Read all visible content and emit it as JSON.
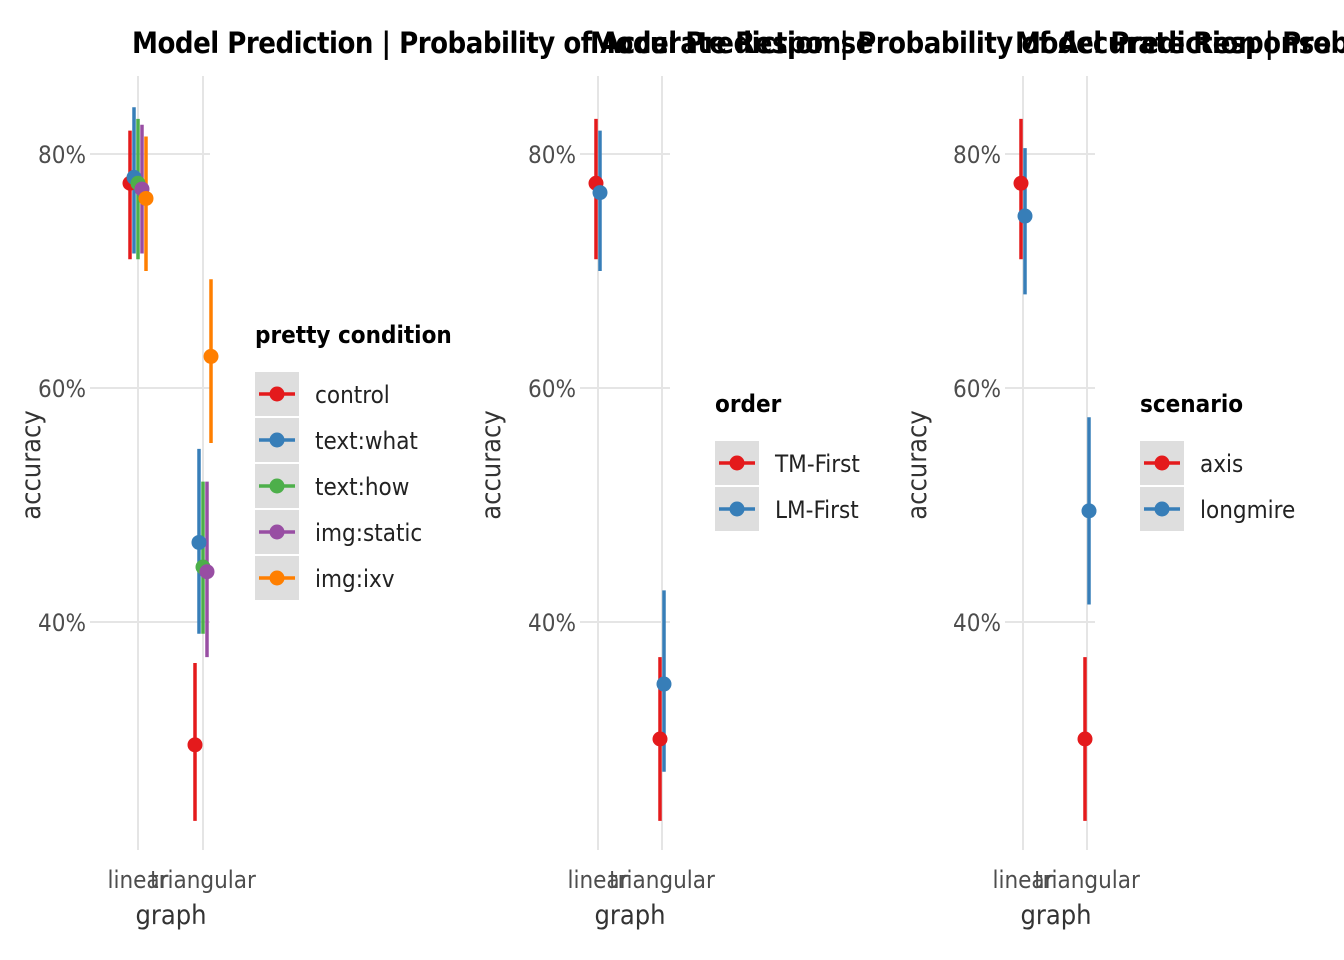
{
  "chart_data": [
    {
      "type": "scatter",
      "subtype": "pointrange",
      "title": "Model Prediction | Probability of Accurate Response",
      "xlabel": "graph",
      "ylabel": "accuracy",
      "categories": [
        "linear",
        "triangular"
      ],
      "y_ticks": [
        "40%",
        "60%",
        "80%"
      ],
      "ylim": [
        0.22,
        0.87
      ],
      "grid": true,
      "legend": {
        "title": "pretty condition",
        "position": "right"
      },
      "series": [
        {
          "name": "control",
          "color": "#e41a1c",
          "values": [
            0.775,
            0.295
          ],
          "lower": [
            0.71,
            0.23
          ],
          "upper": [
            0.82,
            0.365
          ]
        },
        {
          "name": "text:what",
          "color": "#377eb8",
          "values": [
            0.78,
            0.468
          ],
          "lower": [
            0.715,
            0.39
          ],
          "upper": [
            0.84,
            0.548
          ]
        },
        {
          "name": "text:how",
          "color": "#4daf4a",
          "values": [
            0.775,
            0.447
          ],
          "lower": [
            0.71,
            0.39
          ],
          "upper": [
            0.83,
            0.52
          ]
        },
        {
          "name": "img:static",
          "color": "#984ea3",
          "values": [
            0.77,
            0.443
          ],
          "lower": [
            0.715,
            0.37
          ],
          "upper": [
            0.825,
            0.52
          ]
        },
        {
          "name": "img:ixv",
          "color": "#ff7f00",
          "values": [
            0.762,
            0.627
          ],
          "lower": [
            0.7,
            0.553
          ],
          "upper": [
            0.815,
            0.693
          ]
        }
      ]
    },
    {
      "type": "scatter",
      "subtype": "pointrange",
      "title": "Model Prediction | Probability of Accurate Response",
      "xlabel": "graph",
      "ylabel": "accuracy",
      "categories": [
        "linear",
        "triangular"
      ],
      "y_ticks": [
        "40%",
        "60%",
        "80%"
      ],
      "ylim": [
        0.22,
        0.87
      ],
      "grid": true,
      "legend": {
        "title": "order",
        "position": "right"
      },
      "series": [
        {
          "name": "TM-First",
          "color": "#e41a1c",
          "values": [
            0.775,
            0.3
          ],
          "lower": [
            0.71,
            0.23
          ],
          "upper": [
            0.83,
            0.37
          ]
        },
        {
          "name": "LM-First",
          "color": "#377eb8",
          "values": [
            0.767,
            0.347
          ],
          "lower": [
            0.7,
            0.272
          ],
          "upper": [
            0.82,
            0.427
          ]
        }
      ]
    },
    {
      "type": "scatter",
      "subtype": "pointrange",
      "title": "Model Prediction | Probability of Accurate Response",
      "xlabel": "graph",
      "ylabel": "accuracy",
      "categories": [
        "linear",
        "triangular"
      ],
      "y_ticks": [
        "40%",
        "60%",
        "80%"
      ],
      "ylim": [
        0.22,
        0.87
      ],
      "grid": true,
      "legend": {
        "title": "scenario",
        "position": "right"
      },
      "series": [
        {
          "name": "axis",
          "color": "#e41a1c",
          "values": [
            0.775,
            0.3
          ],
          "lower": [
            0.71,
            0.23
          ],
          "upper": [
            0.83,
            0.37
          ]
        },
        {
          "name": "longmire",
          "color": "#377eb8",
          "values": [
            0.747,
            0.495
          ],
          "lower": [
            0.68,
            0.415
          ],
          "upper": [
            0.805,
            0.575
          ]
        }
      ]
    }
  ]
}
